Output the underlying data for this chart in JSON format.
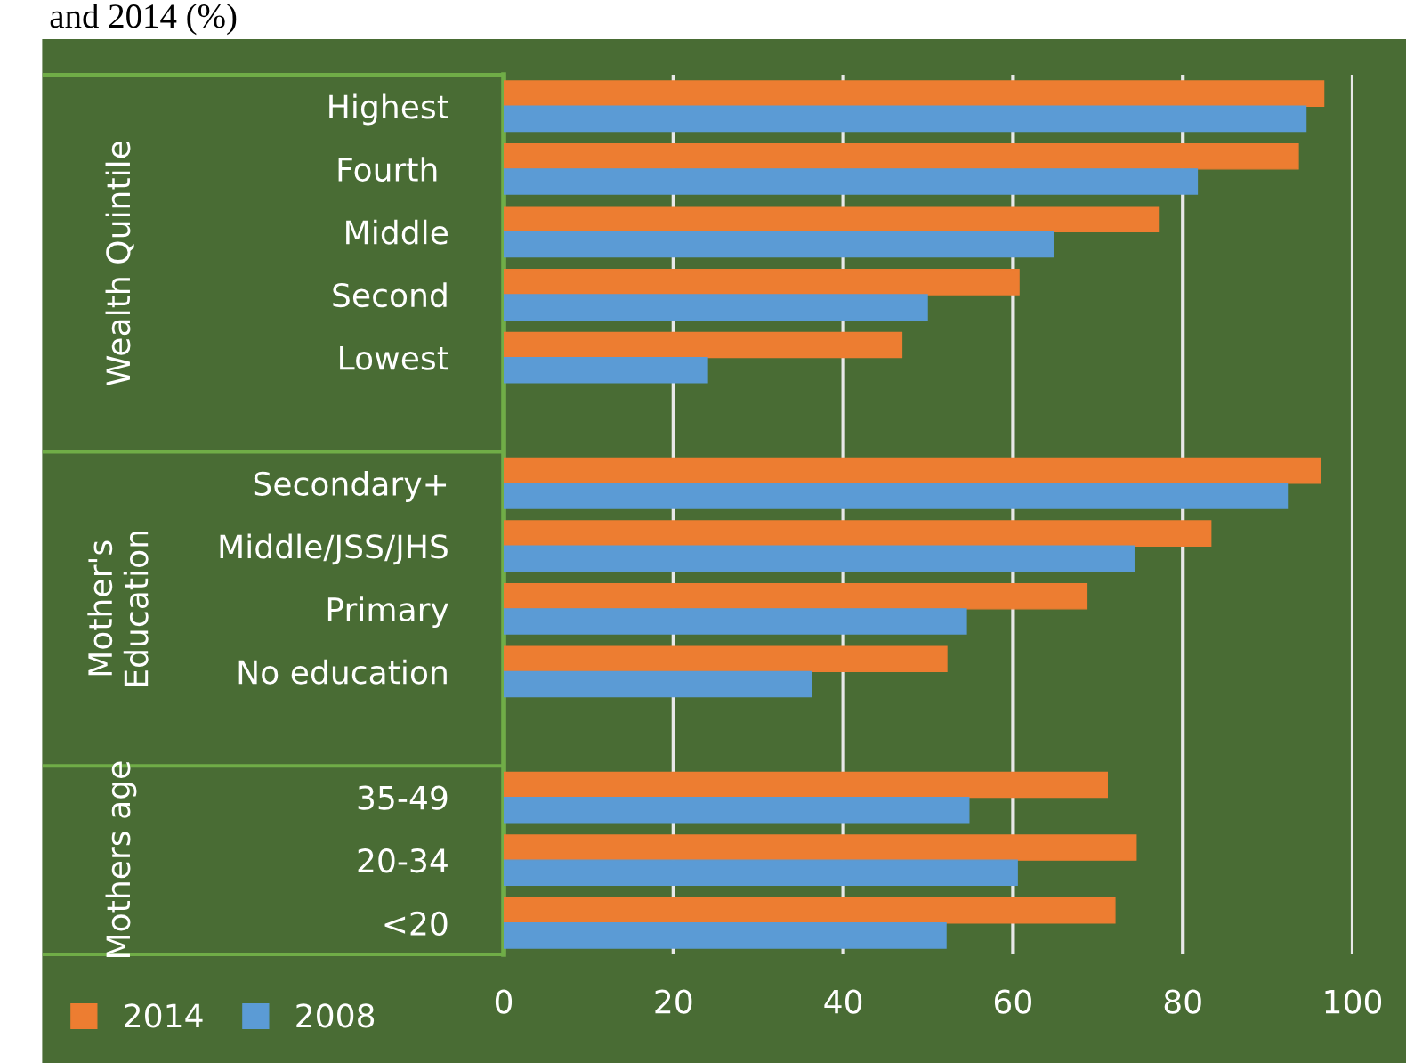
{
  "chart_data": {
    "type": "bar",
    "orientation": "horizontal",
    "title": "and 2014 (%)",
    "categories": [
      "Highest",
      "Fourth ",
      "Middle",
      "Second",
      "Lowest",
      null,
      "Secondary+",
      "Middle/JSS/JHS",
      "Primary",
      "No education",
      null,
      "35-49",
      "20-34",
      "<20"
    ],
    "series": [
      {
        "name": "2014",
        "color": "#ed7d31",
        "values": [
          96.6,
          93.6,
          77.1,
          60.7,
          46.9,
          null,
          96.2,
          83.3,
          68.7,
          52.2,
          null,
          71.1,
          74.5,
          72.0
        ]
      },
      {
        "name": "2008",
        "color": "#5b9bd5",
        "values": [
          94.5,
          81.7,
          64.8,
          49.9,
          24.0,
          null,
          92.3,
          74.3,
          54.5,
          36.2,
          null,
          54.8,
          60.5,
          52.1
        ]
      }
    ],
    "annotations": [
      "Wealth Quintile",
      "Mother's\nEducation",
      "Mothers age"
    ],
    "xlim": [
      0,
      100
    ],
    "xticks": [
      0,
      20,
      40,
      60,
      80,
      100
    ],
    "grid": "x",
    "legend": "bottom left"
  }
}
